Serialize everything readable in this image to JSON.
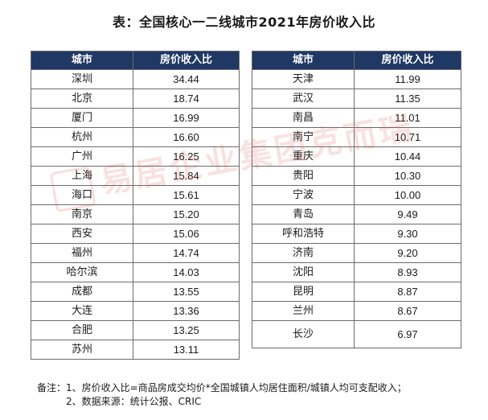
{
  "title": "表：全国核心一二线城市2021年房价收入比",
  "headers": {
    "city": "城市",
    "ratio": "房价收入比"
  },
  "left_table": [
    {
      "city": "深圳",
      "ratio": "34.44"
    },
    {
      "city": "北京",
      "ratio": "18.74"
    },
    {
      "city": "厦门",
      "ratio": "16.99"
    },
    {
      "city": "杭州",
      "ratio": "16.60"
    },
    {
      "city": "广州",
      "ratio": "16.25"
    },
    {
      "city": "上海",
      "ratio": "15.84"
    },
    {
      "city": "海口",
      "ratio": "15.61"
    },
    {
      "city": "南京",
      "ratio": "15.20"
    },
    {
      "city": "西安",
      "ratio": "15.06"
    },
    {
      "city": "福州",
      "ratio": "14.74"
    },
    {
      "city": "哈尔滨",
      "ratio": "14.03"
    },
    {
      "city": "成都",
      "ratio": "13.55"
    },
    {
      "city": "大连",
      "ratio": "13.36"
    },
    {
      "city": "合肥",
      "ratio": "13.25"
    },
    {
      "city": "苏州",
      "ratio": "13.11"
    }
  ],
  "right_table": [
    {
      "city": "天津",
      "ratio": "11.99"
    },
    {
      "city": "武汉",
      "ratio": "11.35"
    },
    {
      "city": "南昌",
      "ratio": "11.01"
    },
    {
      "city": "南宁",
      "ratio": "10.71"
    },
    {
      "city": "重庆",
      "ratio": "10.44"
    },
    {
      "city": "贵阳",
      "ratio": "10.30"
    },
    {
      "city": "宁波",
      "ratio": "10.00"
    },
    {
      "city": "青岛",
      "ratio": "9.49"
    },
    {
      "city": "呼和浩特",
      "ratio": "9.30"
    },
    {
      "city": "济南",
      "ratio": "9.20"
    },
    {
      "city": "沈阳",
      "ratio": "8.93"
    },
    {
      "city": "昆明",
      "ratio": "8.87"
    },
    {
      "city": "兰州",
      "ratio": "8.67"
    },
    {
      "city": "长沙",
      "ratio": "6.97"
    }
  ],
  "watermark": "易居企业集团克而瑞",
  "notes": {
    "line1": "备注：1、房价收入比=商品房成交均价*全国城镇人均居住面积/城镇人均可支配收入；",
    "line2": "2、数据来源：统计公报、CRIC"
  }
}
